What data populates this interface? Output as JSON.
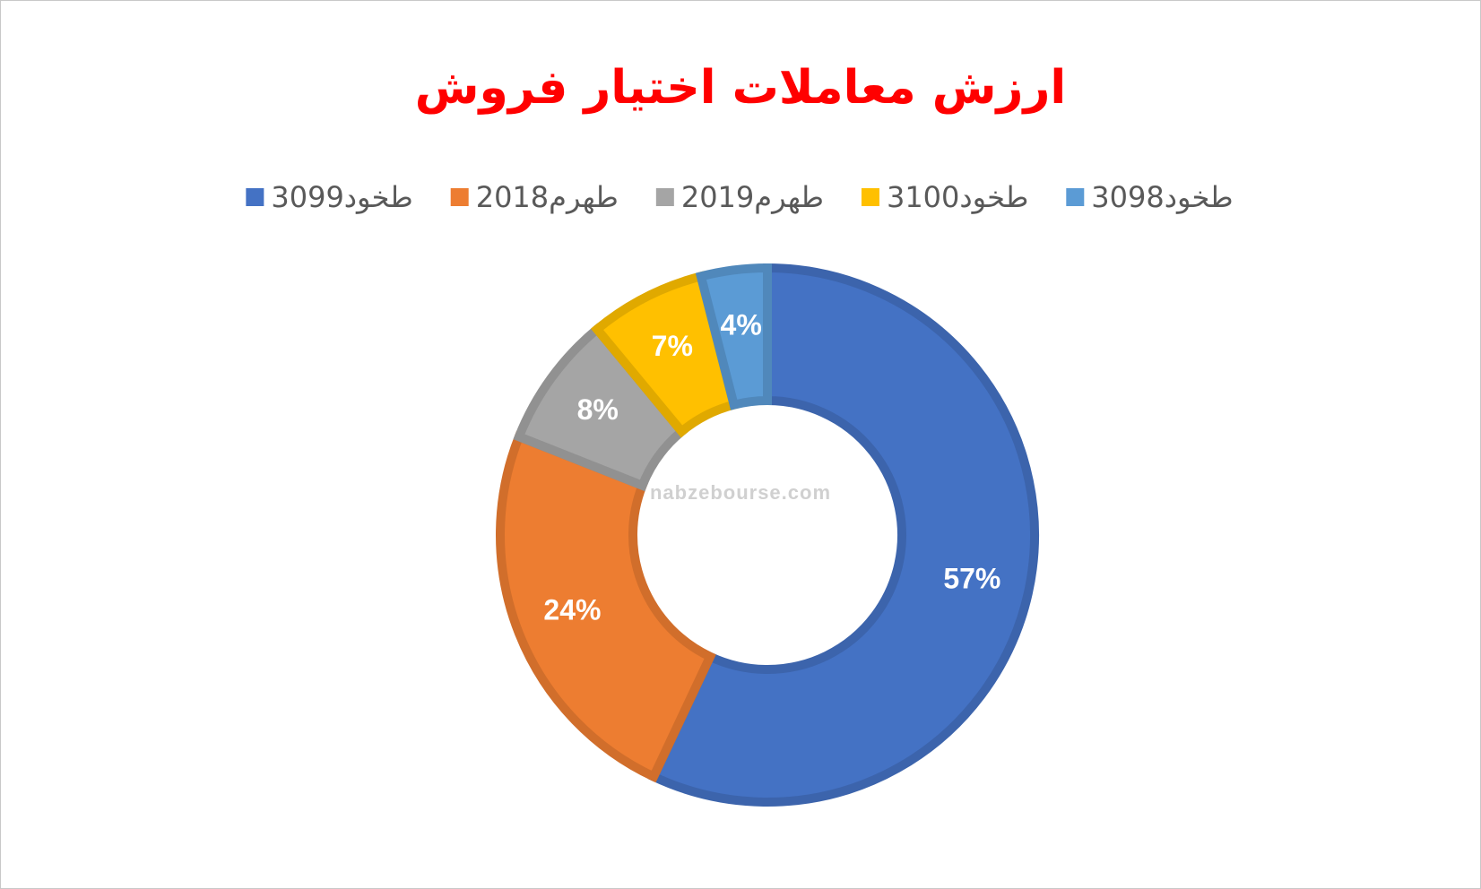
{
  "chart_data": {
    "type": "pie",
    "title": "ارزش معاملات اختیار فروش",
    "categories": [
      "طخود3099",
      "طهرم2018",
      "طهرم2019",
      "طخود3100",
      "طخود3098"
    ],
    "values": [
      57,
      24,
      8,
      7,
      4
    ],
    "value_labels": [
      "57%",
      "24%",
      "8%",
      "7%",
      "4%"
    ],
    "colors": [
      "#4472c4",
      "#ed7d31",
      "#a5a5a5",
      "#ffc000",
      "#5b9bd5"
    ],
    "hole": true,
    "watermark": "nabzebourse.com"
  }
}
